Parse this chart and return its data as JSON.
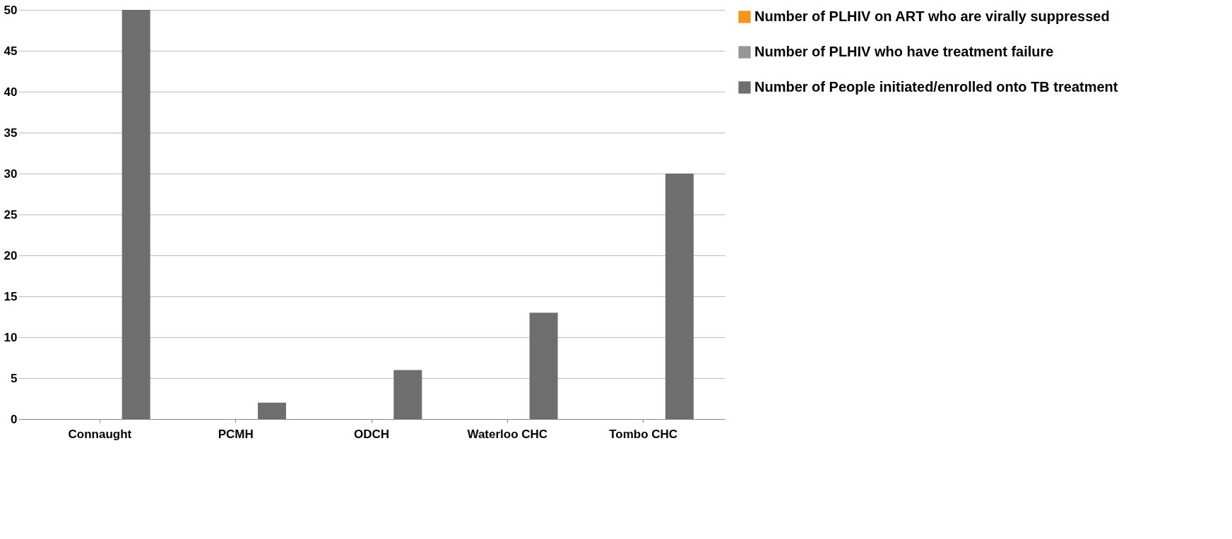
{
  "chart_data": {
    "type": "bar",
    "categories": [
      "Connaught",
      "PCMH",
      "ODCH",
      "Waterloo CHC",
      "Tombo CHC"
    ],
    "series": [
      {
        "name": "Number of PLHIV on ART who are virally suppressed",
        "color": "#f7941d",
        "values": [
          0,
          0,
          0,
          0,
          0
        ]
      },
      {
        "name": "Number of PLHIV who have treatment failure",
        "color": "#969696",
        "values": [
          0,
          0,
          0,
          0,
          0
        ]
      },
      {
        "name": "Number of People initiated/enrolled onto TB treatment",
        "color": "#6e6e6e",
        "values": [
          50,
          2,
          6,
          13,
          30
        ]
      }
    ],
    "ylim": [
      0,
      50
    ],
    "yticks": [
      0,
      5,
      10,
      15,
      20,
      25,
      30,
      35,
      40,
      45,
      50
    ],
    "grid": "y",
    "legend": "right"
  }
}
